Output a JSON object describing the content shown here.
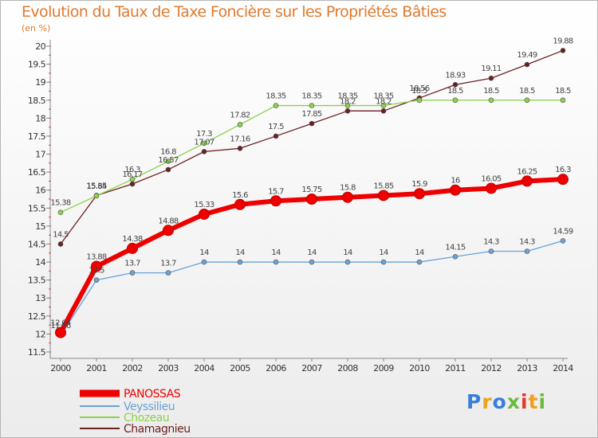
{
  "title": "Evolution du Taux de Taxe Foncière sur les Propriétés Bâties",
  "subtitle": "(en %)",
  "logo": {
    "text": "Proxiti",
    "colors": [
      "#3a7fd6",
      "#f0a020",
      "#3a7fd6",
      "#6bbb3c",
      "#e03a2e",
      "#f0a020",
      "#6bbb3c"
    ]
  },
  "chart_data": {
    "type": "line",
    "x": [
      2000,
      2001,
      2002,
      2003,
      2004,
      2005,
      2006,
      2007,
      2008,
      2009,
      2010,
      2011,
      2012,
      2013,
      2014
    ],
    "ylim": [
      11.5,
      20
    ],
    "yticks": [
      11.5,
      12,
      12.5,
      13,
      13.5,
      14,
      14.5,
      15,
      15.5,
      16,
      16.5,
      17,
      17.5,
      18,
      18.5,
      19,
      19.5,
      20
    ],
    "grid": false,
    "legend_position": "bottom-left",
    "series": [
      {
        "name": "PANOSSAS",
        "color": "#ee0000",
        "values": [
          12.04,
          13.88,
          14.38,
          14.88,
          15.33,
          15.6,
          15.7,
          15.75,
          15.8,
          15.85,
          15.9,
          16,
          16.05,
          16.25,
          16.3
        ],
        "labels": [
          "12.04",
          "13.88",
          "14.38",
          "14.88",
          "15.33",
          "15.6",
          "15.7",
          "15.75",
          "15.8",
          "15.85",
          "15.9",
          "16",
          "16.05",
          "16.25",
          "16.3"
        ]
      },
      {
        "name": "Veyssilieu",
        "color": "#6aa2d8",
        "values": [
          11.96,
          13.5,
          13.7,
          13.7,
          14,
          14,
          14,
          14,
          14,
          14,
          14,
          14.15,
          14.3,
          14.3,
          14.59
        ],
        "labels": [
          "11.96",
          "13.5",
          "13.7",
          "13.7",
          "14",
          "14",
          "14",
          "14",
          "14",
          "14",
          "14",
          "14.15",
          "14.3",
          "14.3",
          "14.59"
        ]
      },
      {
        "name": "Chozeau",
        "color": "#8bd14a",
        "values": [
          15.38,
          15.84,
          16.3,
          16.8,
          17.3,
          17.82,
          18.35,
          18.35,
          18.35,
          18.35,
          18.5,
          18.5,
          18.5,
          18.5,
          18.5
        ],
        "labels": [
          "15.38",
          "15.84",
          "16.3",
          "16.8",
          "17.3",
          "17.82",
          "18.35",
          "18.35",
          "18.35",
          "18.35",
          "18.5",
          "18.5",
          "18.5",
          "18.5",
          "18.5"
        ]
      },
      {
        "name": "Chamagnieu",
        "color": "#6b2020",
        "values": [
          14.5,
          15.85,
          16.17,
          16.57,
          17.07,
          17.16,
          17.5,
          17.85,
          18.2,
          18.2,
          18.56,
          18.93,
          19.11,
          19.49,
          19.88
        ],
        "labels": [
          "14.5",
          "15.85",
          "16.17",
          "16.57",
          "17.07",
          "17.16",
          "17.5",
          "17.85",
          "18.2",
          "18.2",
          "18.56",
          "18.93",
          "19.11",
          "19.49",
          "19.88"
        ]
      }
    ]
  }
}
